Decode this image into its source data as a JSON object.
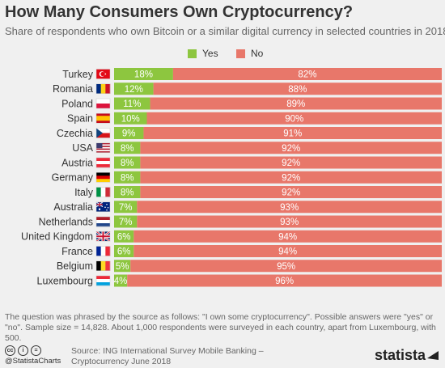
{
  "title": "How Many Consumers Own Cryptocurrency?",
  "subtitle": "Share of respondents who own Bitcoin or a similar digital currency in selected countries in 2018",
  "colors": {
    "yes": "#8dc63f",
    "no": "#e8776a",
    "background": "#f0f0f0"
  },
  "legend": [
    {
      "label": "Yes",
      "color": "#8dc63f"
    },
    {
      "label": "No",
      "color": "#e8776a"
    }
  ],
  "chart_data": {
    "type": "bar",
    "stacked": true,
    "orientation": "horizontal",
    "value_format": "percent",
    "legend_position": "top-center",
    "grid": false,
    "xlim": [
      0,
      100
    ],
    "categories": [
      "Turkey",
      "Romania",
      "Poland",
      "Spain",
      "Czechia",
      "USA",
      "Austria",
      "Germany",
      "Italy",
      "Australia",
      "Netherlands",
      "United Kingdom",
      "France",
      "Belgium",
      "Luxembourg"
    ],
    "flag_icons": [
      "turkey-flag-icon",
      "romania-flag-icon",
      "poland-flag-icon",
      "spain-flag-icon",
      "czechia-flag-icon",
      "usa-flag-icon",
      "austria-flag-icon",
      "germany-flag-icon",
      "italy-flag-icon",
      "australia-flag-icon",
      "netherlands-flag-icon",
      "united-kingdom-flag-icon",
      "france-flag-icon",
      "belgium-flag-icon",
      "luxembourg-flag-icon"
    ],
    "series": [
      {
        "name": "Yes",
        "color": "#8dc63f",
        "values": [
          18,
          12,
          11,
          10,
          9,
          8,
          8,
          8,
          8,
          7,
          7,
          6,
          6,
          5,
          4
        ]
      },
      {
        "name": "No",
        "color": "#e8776a",
        "values": [
          82,
          88,
          89,
          90,
          91,
          92,
          92,
          92,
          92,
          93,
          93,
          94,
          94,
          95,
          96
        ]
      }
    ]
  },
  "footnote": "The question was phrased by the source as follows: \"I own some cryptocurrency\". Possible answers were \"yes\" or \"no\". Sample size = 14,828. About 1,000 respondents were surveyed in each country, apart from Luxembourg, with 500.",
  "source_line1": "Source: ING International Survey Mobile Banking –",
  "source_line2": "Cryptocurrency June 2018",
  "handle": "@StatistaCharts",
  "license_icons": [
    {
      "name": "cc-icon",
      "glyph": "cc"
    },
    {
      "name": "attribution-icon",
      "glyph": "i"
    },
    {
      "name": "no-derivatives-icon",
      "glyph": "="
    }
  ],
  "brand": "statista"
}
